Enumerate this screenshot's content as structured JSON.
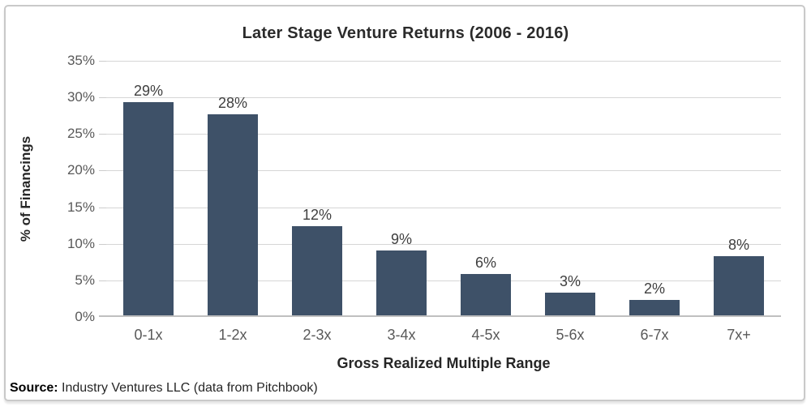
{
  "page": {
    "title": "Later Stage Venture Returns (2006 - 2016)",
    "source_label": "Source:",
    "source_text": " Industry Ventures LLC (data from Pitchbook)"
  },
  "chart_data": {
    "type": "bar",
    "title": "Later Stage Venture Returns (2006 - 2016)",
    "categories": [
      "0-1x",
      "1-2x",
      "2-3x",
      "3-4x",
      "4-5x",
      "5-6x",
      "6-7x",
      "7x+"
    ],
    "values": [
      29.3,
      27.7,
      12.4,
      9.1,
      5.9,
      3.3,
      2.3,
      8.3
    ],
    "bar_labels": [
      "29%",
      "28%",
      "12%",
      "9%",
      "6%",
      "3%",
      "2%",
      "8%"
    ],
    "xlabel": "Gross Realized Multiple Range",
    "ylabel": "% of Financings",
    "ylim": [
      0,
      35
    ],
    "ytick_step": 5,
    "ytick_labels": [
      "0%",
      "5%",
      "10%",
      "15%",
      "20%",
      "25%",
      "30%",
      "35%"
    ],
    "grid": true,
    "legend": false,
    "bar_color": "#3e5168",
    "gridline_color": "#d6d6d6",
    "axis_line_color": "#c0c0c0",
    "frame_border_color": "#c9c9c9"
  }
}
